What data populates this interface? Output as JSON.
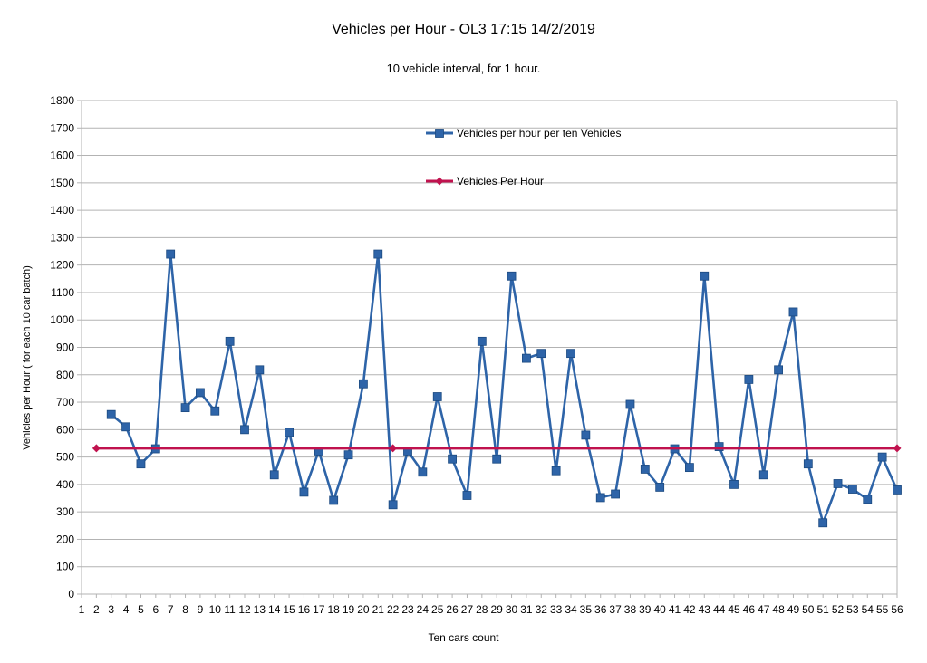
{
  "chart_data": {
    "type": "line",
    "title": "Vehicles per Hour - OL3   17:15 14/2/2019",
    "subtitle": "10 vehicle interval, for 1 hour.",
    "xlabel": "Ten cars count",
    "ylabel": "Vehicles per Hour ( for each 10 car batch)",
    "ylim": [
      0,
      1800
    ],
    "ystep": 100,
    "xlim": [
      1,
      56
    ],
    "categories": [
      1,
      2,
      3,
      4,
      5,
      6,
      7,
      8,
      9,
      10,
      11,
      12,
      13,
      14,
      15,
      16,
      17,
      18,
      19,
      20,
      21,
      22,
      23,
      24,
      25,
      26,
      27,
      28,
      29,
      30,
      31,
      32,
      33,
      34,
      35,
      36,
      37,
      38,
      39,
      40,
      41,
      42,
      43,
      44,
      45,
      46,
      47,
      48,
      49,
      50,
      51,
      52,
      53,
      54,
      55,
      56
    ],
    "grid": true,
    "legend_position": "top-center",
    "series": [
      {
        "name": "Vehicles per hour per ten Vehicles",
        "color": "#2e64a8",
        "marker": "square",
        "x": [
          3,
          4,
          5,
          6,
          7,
          8,
          9,
          10,
          11,
          12,
          13,
          14,
          15,
          16,
          17,
          18,
          19,
          20,
          21,
          22,
          23,
          24,
          25,
          26,
          27,
          28,
          29,
          30,
          31,
          32,
          33,
          34,
          35,
          36,
          37,
          38,
          39,
          40,
          41,
          42,
          43,
          44,
          45,
          46,
          47,
          48,
          49,
          50,
          51,
          52,
          53,
          54,
          55,
          56
        ],
        "values": [
          655,
          610,
          475,
          530,
          1240,
          680,
          735,
          668,
          922,
          600,
          818,
          435,
          590,
          372,
          522,
          342,
          508,
          767,
          1240,
          326,
          522,
          445,
          720,
          493,
          360,
          922,
          493,
          1160,
          860,
          878,
          450,
          878,
          580,
          352,
          365,
          692,
          456,
          390,
          530,
          462,
          1160,
          538,
          400,
          783,
          435,
          818,
          1029,
          475,
          260,
          403,
          383,
          346,
          500,
          380
        ]
      },
      {
        "name": "Vehicles Per Hour",
        "color": "#c0124e",
        "marker": "diamond",
        "x": [
          2,
          22,
          56
        ],
        "values": [
          532,
          532,
          532
        ]
      }
    ]
  }
}
